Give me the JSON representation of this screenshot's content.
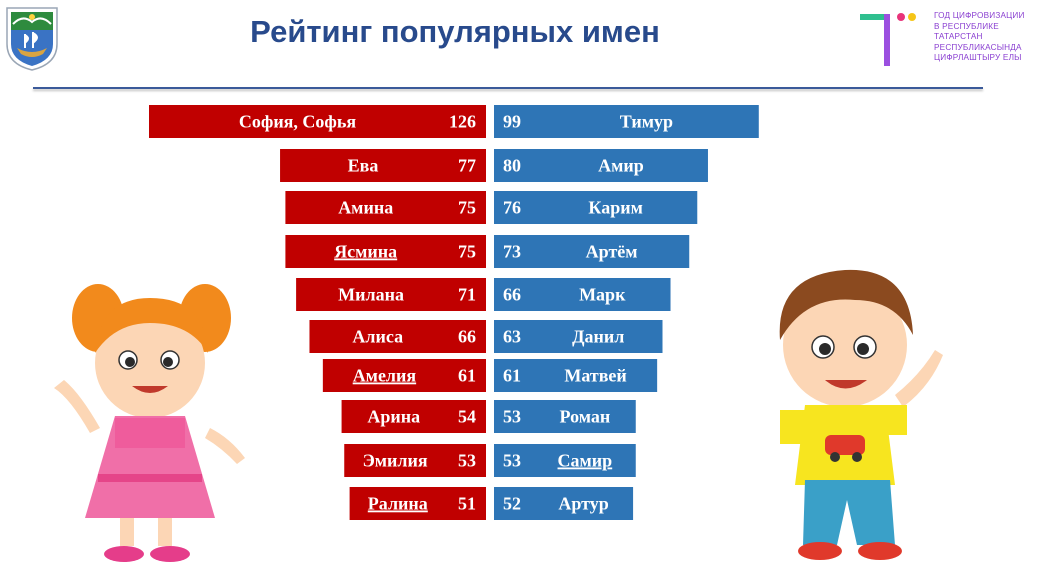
{
  "header": {
    "title": "Рейтинг популярных имен",
    "event_lines": [
      "ГОД ЦИФРОВИЗАЦИИ",
      "В РЕСПУБЛИКЕ",
      "ТАТАРСТАН",
      "РЕСПУБЛИКАСЫНДА",
      "ЦИФРЛАШТЫРУ ЕЛЫ"
    ]
  },
  "colors": {
    "girls_bar": "#c00000",
    "boys_bar": "#2e75b6",
    "title": "#284a8c",
    "event_text": "#8a3fd1"
  },
  "chart_data": {
    "type": "bar",
    "orientation": "horizontal-diverging",
    "series": [
      {
        "name": "",
        "categories": [
          "София, Софья",
          "Ева",
          "Амина",
          "Ясмина",
          "Милана",
          "Алиса",
          "Амелия",
          "Арина",
          "Эмилия",
          "Ралина"
        ],
        "values": [
          126,
          77,
          75,
          75,
          71,
          66,
          61,
          54,
          53,
          51
        ]
      },
      {
        "name": "",
        "categories": [
          "Тимур",
          "Амир",
          "Карим",
          "Артём",
          "Марк",
          "Данил",
          "Матвей",
          "Роман",
          "Самир",
          "Артур"
        ],
        "values": [
          99,
          80,
          76,
          73,
          66,
          63,
          61,
          53,
          53,
          52
        ]
      }
    ]
  }
}
